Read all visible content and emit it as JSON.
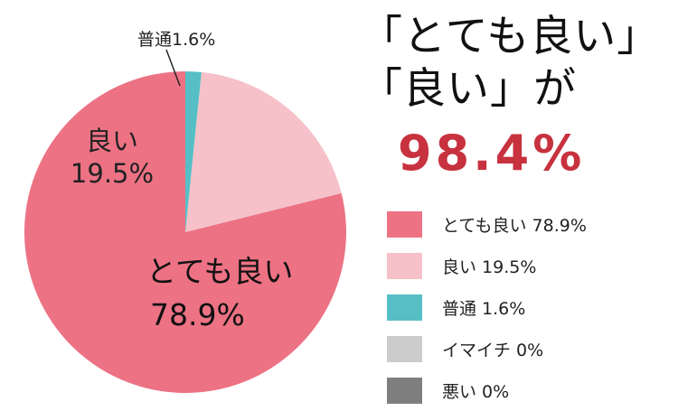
{
  "headline": {
    "line1": "「とても良い」",
    "line2": "「良い」が",
    "highlight": "98.4%"
  },
  "chart_data": {
    "type": "pie",
    "title": "",
    "slices": [
      {
        "label": "とても良い",
        "value": 78.9,
        "display": "78.9%",
        "color": "#ec7284"
      },
      {
        "label": "良い",
        "value": 19.5,
        "display": "19.5%",
        "color": "#f6c1c8"
      },
      {
        "label": "普通",
        "value": 1.6,
        "display": "1.6%",
        "color": "#56bfc6"
      },
      {
        "label": "イマイチ",
        "value": 0,
        "display": "0%",
        "color": "#cccccc"
      },
      {
        "label": "悪い",
        "value": 0,
        "display": "0%",
        "color": "#7f7f7f"
      }
    ],
    "pie_labels": [
      {
        "name": "とても良い",
        "pct": "78.9%"
      },
      {
        "name": "良い",
        "pct": "19.5%"
      },
      {
        "name": "普通",
        "pct": "1.6%"
      }
    ],
    "legend": {
      "placement": "right",
      "items": [
        {
          "label": "とても良い 78.9%",
          "color": "#ec7284"
        },
        {
          "label": "良い 19.5%",
          "color": "#f6c1c8"
        },
        {
          "label": "普通 1.6%",
          "color": "#56bfc6"
        },
        {
          "label": "イマイチ 0%",
          "color": "#cccccc"
        },
        {
          "label": "悪い 0%",
          "color": "#7f7f7f"
        }
      ]
    }
  }
}
